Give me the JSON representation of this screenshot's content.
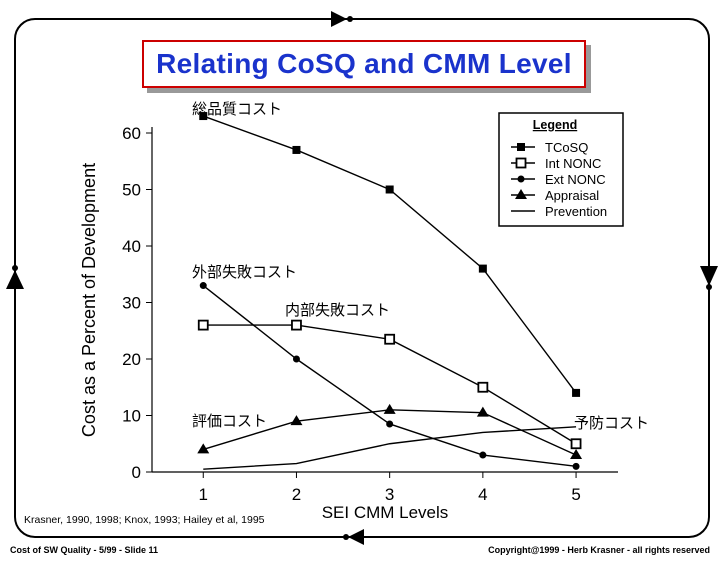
{
  "slide": {
    "footer_left": "Cost of SW Quality -  5/99 - Slide  11",
    "footer_right": "Copyright@1999 - Herb Krasner - all rights reserved",
    "citation": "Krasner, 1990, 1998; Knox, 1993; Hailey et al, 1995"
  },
  "chart_data": {
    "type": "line",
    "title": "Relating CoSQ and CMM Level",
    "xlabel": "SEI CMM Levels",
    "ylabel": "Cost as a Percent of Development",
    "x": [
      1,
      2,
      3,
      4,
      5
    ],
    "xlim": [
      0.45,
      5.45
    ],
    "ylim": [
      0,
      60
    ],
    "yticks": [
      "0",
      "10",
      "20",
      "30",
      "40",
      "50",
      "60"
    ],
    "xticks": [
      "1",
      "2",
      "3",
      "4",
      "5"
    ],
    "grid": false,
    "legend_title": "Legend",
    "legend_position": "top-right",
    "series": [
      {
        "name": "TCoSQ",
        "marker": "square-filled",
        "values": [
          63,
          57,
          50,
          36,
          14
        ],
        "annotation": "総品質コスト"
      },
      {
        "name": "Int NONC",
        "marker": "square-open",
        "values": [
          26,
          26,
          23.5,
          15,
          5
        ],
        "annotation": "内部失敗コスト"
      },
      {
        "name": "Ext NONC",
        "marker": "circle-filled",
        "values": [
          33,
          20,
          8.5,
          3,
          1
        ],
        "annotation": "外部失敗コスト"
      },
      {
        "name": "Appraisal",
        "marker": "triangle-filled",
        "values": [
          4,
          9,
          11,
          10.5,
          3
        ],
        "annotation": "評価コスト"
      },
      {
        "name": "Prevention",
        "marker": "none",
        "values": [
          0.5,
          1.5,
          5,
          7,
          8
        ],
        "annotation": "予防コスト"
      }
    ],
    "colors": {
      "line": "#000000",
      "title_text": "#1a33cc",
      "title_border": "#cc0000",
      "title_shadow": "#999999"
    }
  }
}
